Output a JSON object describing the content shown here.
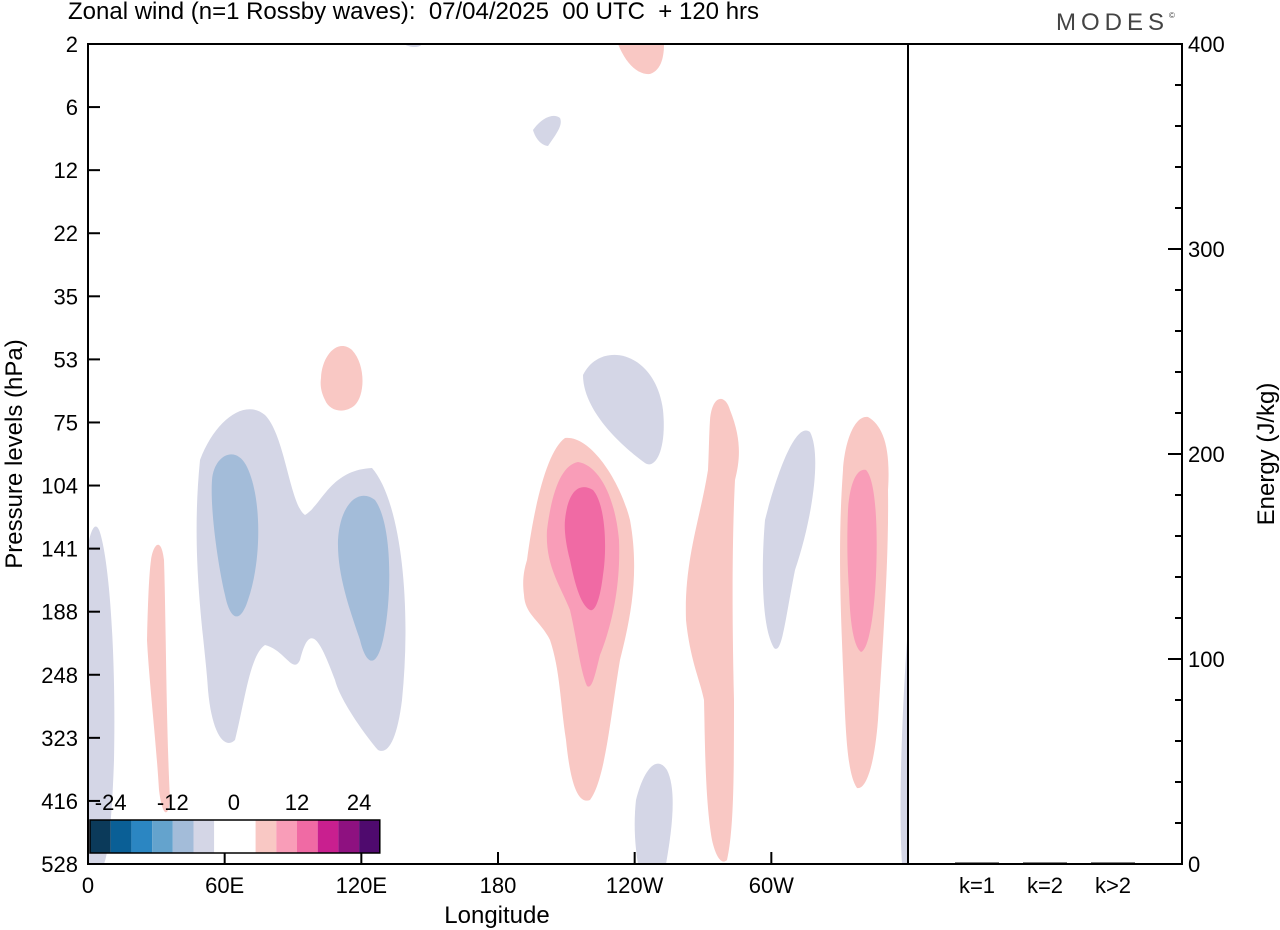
{
  "title": "Zonal wind (n=1 Rossby waves):  07/04/2025  00 UTC  + 120 hrs",
  "brand": "MODES",
  "brand_mark": "©",
  "chart_data": [
    {
      "type": "heatmap",
      "title": "Zonal wind (n=1 Rossby waves):  07/04/2025  00 UTC  + 120 hrs",
      "xlabel": "Longitude",
      "ylabel": "Pressure levels (hPa)",
      "x_tick_labels": [
        "0",
        "60E",
        "120E",
        "180",
        "120W",
        "60W"
      ],
      "x_tick_values_deg_east": [
        0,
        60,
        120,
        180,
        240,
        300
      ],
      "xlim_deg_east": [
        0,
        360
      ],
      "y_tick_labels": [
        "2",
        "6",
        "12",
        "22",
        "35",
        "53",
        "75",
        "104",
        "141",
        "188",
        "248",
        "323",
        "416",
        "528"
      ],
      "y_order": "top-to-bottom",
      "grid": false,
      "colorbar": {
        "tick_labels": [
          "-24",
          "-12",
          "0",
          "12",
          "24"
        ],
        "colors": [
          "#0b3a5a",
          "#0a5f96",
          "#2b86c2",
          "#64a3cd",
          "#a3bcd9",
          "#d4d6e6",
          "#ffffff",
          "#ffffff",
          "#f9c8c4",
          "#f99db8",
          "#f06aa4",
          "#c91f8f",
          "#8e1180",
          "#4f0a6e"
        ],
        "placement": "bottom-left"
      },
      "features": [
        {
          "sign": "negative",
          "max_abs": 12,
          "lon_deg_east": [
            30,
            140
          ],
          "pressure_hpa": [
            75,
            323
          ],
          "note": "cores near 60E and 125E, 104-248 hPa"
        },
        {
          "sign": "negative",
          "max_abs": 6,
          "lon_deg_east": [
            0,
            15
          ],
          "pressure_hpa": [
            141,
            528
          ]
        },
        {
          "sign": "positive",
          "max_abs": 6,
          "lon_deg_east": [
            26,
            36
          ],
          "pressure_hpa": [
            141,
            416
          ]
        },
        {
          "sign": "positive",
          "max_abs": 6,
          "lon_deg_east": [
            100,
            120
          ],
          "pressure_hpa": [
            53,
            75
          ]
        },
        {
          "sign": "positive",
          "max_abs": 18,
          "lon_deg_east": [
            190,
            240
          ],
          "pressure_hpa": [
            75,
            416
          ],
          "note": "core near 145W, 141 hPa"
        },
        {
          "sign": "negative",
          "max_abs": 6,
          "lon_deg_east": [
            220,
            270
          ],
          "pressure_hpa": [
            53,
            104
          ]
        },
        {
          "sign": "positive",
          "max_abs": 6,
          "lon_deg_east": [
            260,
            290
          ],
          "pressure_hpa": [
            75,
            528
          ]
        },
        {
          "sign": "negative",
          "max_abs": 6,
          "lon_deg_east": [
            298,
            320
          ],
          "pressure_hpa": [
            75,
            248
          ]
        },
        {
          "sign": "positive",
          "max_abs": 12,
          "lon_deg_east": [
            330,
            352
          ],
          "pressure_hpa": [
            75,
            416
          ],
          "note": "core near 24W, 141 hPa"
        },
        {
          "sign": "positive",
          "max_abs": 6,
          "lon_deg_east": [
            232,
            252
          ],
          "pressure_hpa": [
            2,
            6
          ]
        },
        {
          "sign": "negative",
          "max_abs": 6,
          "lon_deg_east": [
            240,
            260
          ],
          "pressure_hpa": [
            416,
            528
          ]
        },
        {
          "sign": "negative",
          "max_abs": 6,
          "lon_deg_east": [
            196,
            208
          ],
          "pressure_hpa": [
            6,
            12
          ]
        }
      ]
    },
    {
      "type": "bar",
      "categories": [
        "k=1",
        "k=2",
        "k>2"
      ],
      "values": [
        0,
        0,
        0
      ],
      "ylabel": "Energy (J/kg)",
      "ylim": [
        0,
        400
      ],
      "y_tick_labels": [
        "0",
        "100",
        "200",
        "300",
        "400"
      ]
    }
  ]
}
